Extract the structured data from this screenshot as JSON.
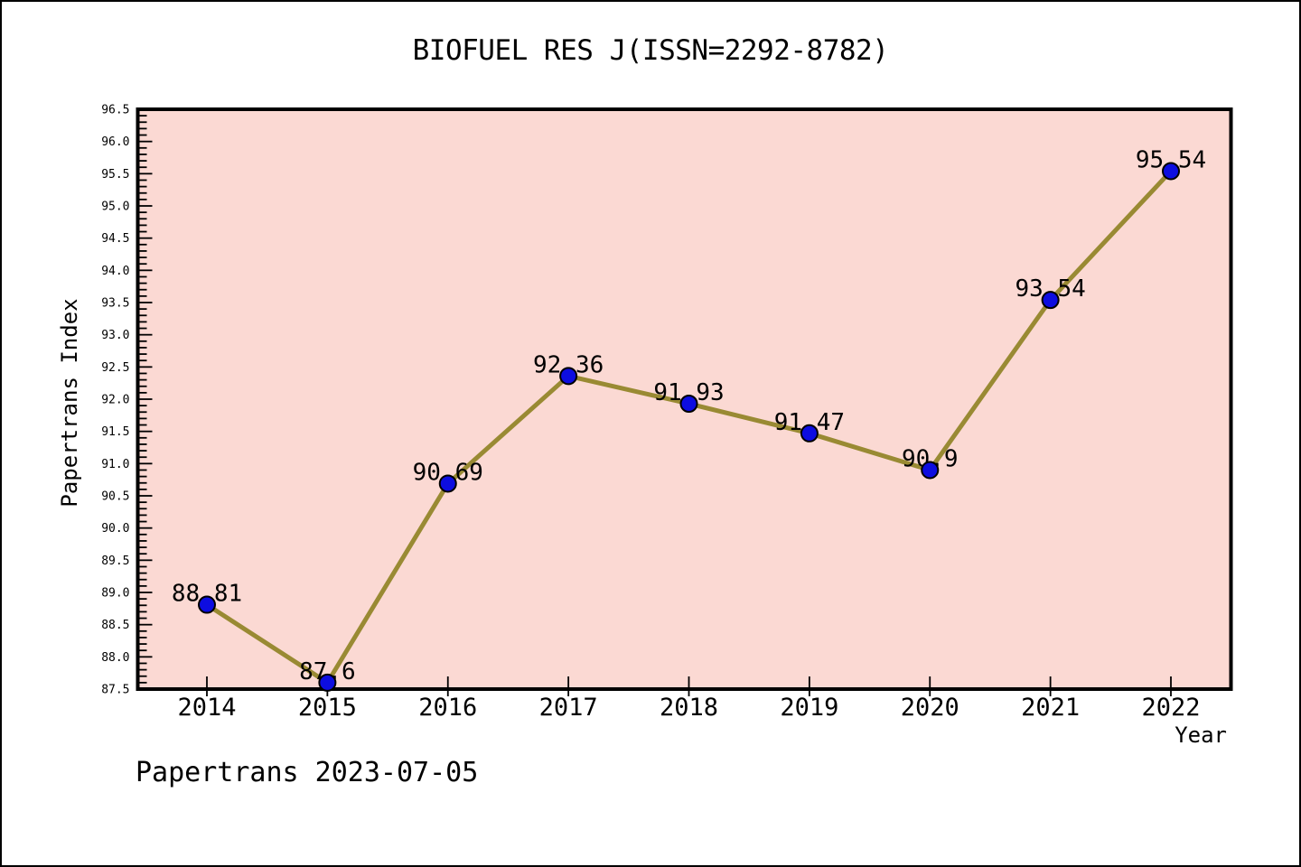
{
  "frame": {
    "background": "#ffffff",
    "border_color": "#000000"
  },
  "chart_data": {
    "type": "line",
    "title": "BIOFUEL RES J(ISSN=2292-8782)",
    "xlabel": "Year",
    "ylabel": "Papertrans Index",
    "categories": [
      2014,
      2015,
      2016,
      2017,
      2018,
      2019,
      2020,
      2021,
      2022
    ],
    "values": [
      88.81,
      87.6,
      90.69,
      92.36,
      91.93,
      91.47,
      90.9,
      93.54,
      95.54
    ],
    "point_labels": [
      "88.81",
      "87.6",
      "90.69",
      "92.36",
      "91.93",
      "91.47",
      "90.9",
      "93.54",
      "95.54"
    ],
    "ylim": [
      87.5,
      96.5
    ],
    "y_major_step": 0.5,
    "y_minor_step": 0.1,
    "y_tick_decimals": 1,
    "grid": false,
    "legend": "none",
    "colors": {
      "plot_background": "#fbd9d3",
      "line": "#998a33",
      "marker_fill": "#0d0de0",
      "marker_edge": "#000000",
      "axis": "#000000",
      "text": "#000000"
    }
  },
  "footer": {
    "text": "Papertrans 2023-07-05"
  }
}
